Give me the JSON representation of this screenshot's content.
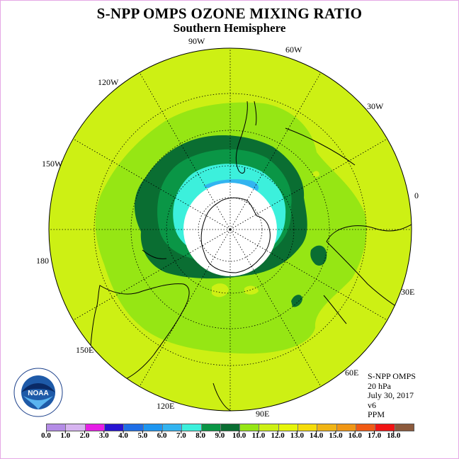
{
  "title": "S-NPP OMPS OZONE MIXING RATIO",
  "subtitle": "Southern Hemisphere",
  "longitude_labels": [
    {
      "text": "90W",
      "lon": -90
    },
    {
      "text": "60W",
      "lon": -60
    },
    {
      "text": "30W",
      "lon": -30
    },
    {
      "text": "0",
      "lon": 0
    },
    {
      "text": "30E",
      "lon": 30
    },
    {
      "text": "60E",
      "lon": 60
    },
    {
      "text": "90E",
      "lon": 90
    },
    {
      "text": "120E",
      "lon": 120
    },
    {
      "text": "150E",
      "lon": 150
    },
    {
      "text": "180",
      "lon": 180
    },
    {
      "text": "150W",
      "lon": -150
    },
    {
      "text": "120W",
      "lon": -120
    }
  ],
  "info": {
    "instrument": "S-NPP OMPS",
    "level": "20 hPa",
    "date": "July 30, 2017",
    "version": "v6",
    "units": "PPM"
  },
  "colorbar": {
    "labels": [
      "0.0",
      "1.0",
      "2.0",
      "3.0",
      "4.0",
      "5.0",
      "6.0",
      "7.0",
      "8.0",
      "9.0",
      "10.0",
      "11.0",
      "12.0",
      "13.0",
      "14.0",
      "15.0",
      "16.0",
      "17.0",
      "18.0"
    ],
    "colors": [
      "#b48ce6",
      "#d7b4f0",
      "#e61ee6",
      "#2814d2",
      "#1f6ee6",
      "#1e96f0",
      "#32b4f0",
      "#3cf0dc",
      "#0a9646",
      "#0a6e32",
      "#96e614",
      "#cdf014",
      "#e6f50a",
      "#f5dc0a",
      "#f0b414",
      "#f09614",
      "#f05a14",
      "#f01414",
      "#8c5a3c"
    ]
  },
  "logo": {
    "text": "NOAA"
  }
}
